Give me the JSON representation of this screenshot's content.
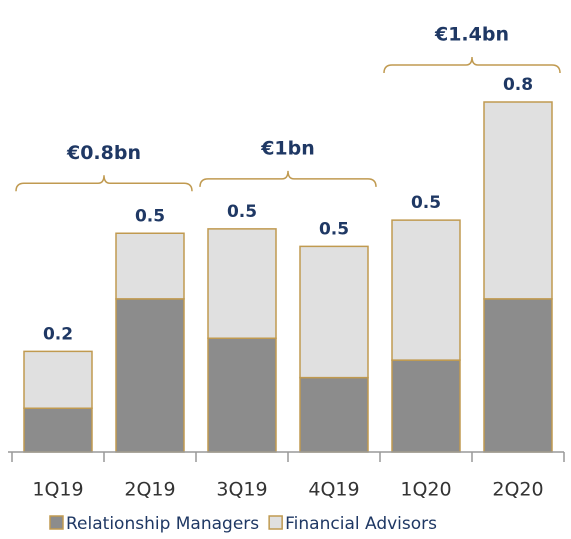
{
  "chart_data": {
    "type": "stacked_bar",
    "categories": [
      "1Q19",
      "2Q19",
      "3Q19",
      "4Q19",
      "1Q20",
      "2Q20"
    ],
    "series": [
      {
        "name": "Relationship Managers",
        "color": "#8c8c8c",
        "values": [
          0.1,
          0.35,
          0.26,
          0.17,
          0.21,
          0.35
        ]
      },
      {
        "name": "Financial Advisors",
        "color": "#e0e0e0",
        "values": [
          0.13,
          0.15,
          0.25,
          0.3,
          0.32,
          0.45
        ]
      }
    ],
    "total_labels": [
      "0.2",
      "0.5",
      "0.5",
      "0.5",
      "0.5",
      "0.8"
    ],
    "annotations": [
      {
        "label": "€0.8bn",
        "categories": [
          "1Q19",
          "2Q19"
        ]
      },
      {
        "label": "€1bn",
        "categories": [
          "3Q19",
          "4Q19"
        ]
      },
      {
        "label": "€1.4bn",
        "categories": [
          "1Q20",
          "2Q20"
        ]
      }
    ],
    "border_color": "#c09a50",
    "ylim": [
      0,
      0.8
    ]
  }
}
